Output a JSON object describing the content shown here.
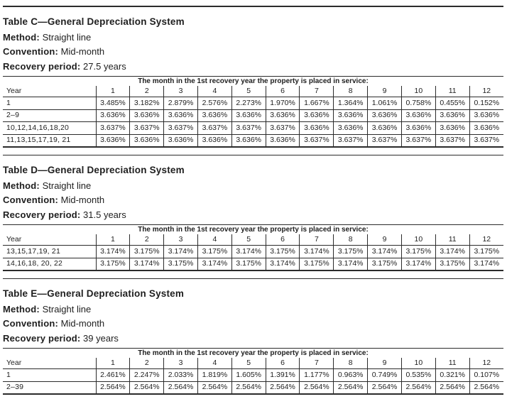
{
  "document": {
    "caption": "The month in the 1st recovery year the property is placed in service:",
    "year_header": "Year",
    "month_headers": [
      "1",
      "2",
      "3",
      "4",
      "5",
      "6",
      "7",
      "8",
      "9",
      "10",
      "11",
      "12"
    ],
    "labels": {
      "method": "Method:",
      "convention": "Convention:",
      "recovery": "Recovery period:"
    },
    "sections": [
      {
        "title": "Table C—General Depreciation System",
        "method": "Straight line",
        "convention": "Mid-month",
        "recovery": "27.5 years",
        "rows": [
          {
            "year": "1",
            "values": [
              "3.485%",
              "3.182%",
              "2.879%",
              "2.576%",
              "2.273%",
              "1.970%",
              "1.667%",
              "1.364%",
              "1.061%",
              "0.758%",
              "0.455%",
              "0.152%"
            ]
          },
          {
            "year": "2–9",
            "values": [
              "3.636%",
              "3.636%",
              "3.636%",
              "3.636%",
              "3.636%",
              "3.636%",
              "3.636%",
              "3.636%",
              "3.636%",
              "3.636%",
              "3.636%",
              "3.636%"
            ]
          },
          {
            "year": "10,12,14,16,18,20",
            "values": [
              "3.637%",
              "3.637%",
              "3.637%",
              "3.637%",
              "3.637%",
              "3.637%",
              "3.636%",
              "3.636%",
              "3.636%",
              "3.636%",
              "3.636%",
              "3.636%"
            ]
          },
          {
            "year": "11,13,15,17,19, 21",
            "values": [
              "3.636%",
              "3.636%",
              "3.636%",
              "3.636%",
              "3.636%",
              "3.636%",
              "3.637%",
              "3.637%",
              "3.637%",
              "3.637%",
              "3.637%",
              "3.637%"
            ]
          }
        ]
      },
      {
        "title": "Table D—General Depreciation System",
        "method": "Straight line",
        "convention": "Mid-month",
        "recovery": "31.5 years",
        "rows": [
          {
            "year": "13,15,17,19, 21",
            "values": [
              "3.174%",
              "3.175%",
              "3.174%",
              "3.175%",
              "3.174%",
              "3.175%",
              "3.174%",
              "3.175%",
              "3.174%",
              "3.175%",
              "3.174%",
              "3.175%"
            ]
          },
          {
            "year": "14,16,18, 20, 22",
            "values": [
              "3.175%",
              "3.174%",
              "3.175%",
              "3.174%",
              "3.175%",
              "3.174%",
              "3.175%",
              "3.174%",
              "3.175%",
              "3.174%",
              "3.175%",
              "3.174%"
            ]
          }
        ]
      },
      {
        "title": "Table E—General Depreciation System",
        "method": "Straight line",
        "convention": "Mid-month",
        "recovery": "39 years",
        "rows": [
          {
            "year": "1",
            "values": [
              "2.461%",
              "2.247%",
              "2.033%",
              "1.819%",
              "1.605%",
              "1.391%",
              "1.177%",
              "0.963%",
              "0.749%",
              "0.535%",
              "0.321%",
              "0.107%"
            ]
          },
          {
            "year": "2–39",
            "values": [
              "2.564%",
              "2.564%",
              "2.564%",
              "2.564%",
              "2.564%",
              "2.564%",
              "2.564%",
              "2.564%",
              "2.564%",
              "2.564%",
              "2.564%",
              "2.564%"
            ]
          }
        ]
      }
    ]
  }
}
